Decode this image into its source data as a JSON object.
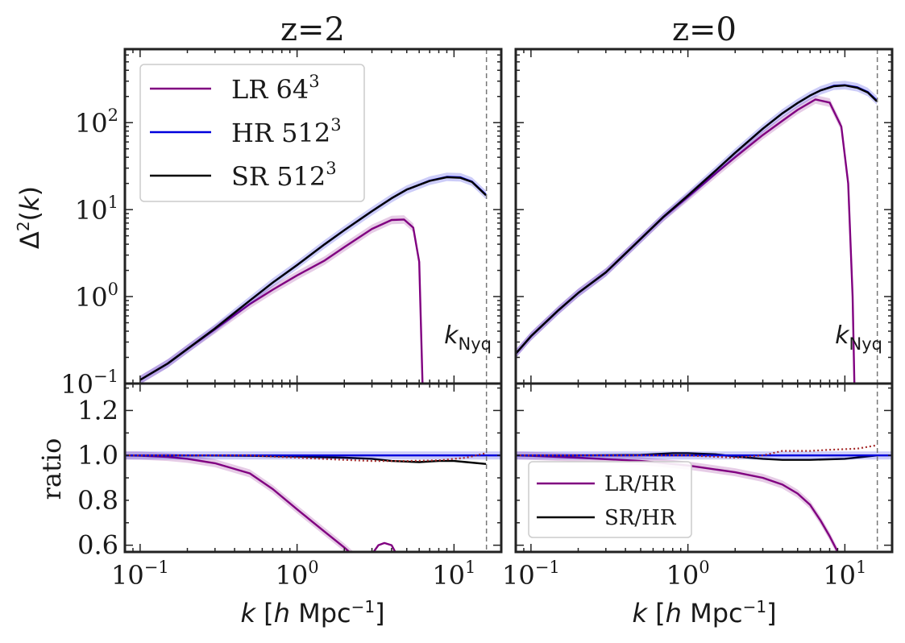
{
  "chart_data": [
    {
      "type": "line",
      "panel": "top-left",
      "title": "z=2",
      "ylabel": "Δ²(k)",
      "xscale": "log",
      "yscale": "log",
      "xlim": [
        0.08,
        20
      ],
      "ylim": [
        0.1,
        700
      ],
      "y_ticks": [
        {
          "v": 0.1,
          "base": "10",
          "exp": "−1"
        },
        {
          "v": 1,
          "base": "10",
          "exp": "0"
        },
        {
          "v": 10,
          "base": "10",
          "exp": "1"
        },
        {
          "v": 100,
          "base": "10",
          "exp": "2"
        }
      ],
      "nyquist": {
        "k": 16.1,
        "label_main": "k",
        "label_sub": "Nyq"
      },
      "legend": [
        {
          "label": "LR 64",
          "sup": "3",
          "color": "#800080"
        },
        {
          "label": "HR 512",
          "sup": "3",
          "color": "#0000dd"
        },
        {
          "label": "SR 512",
          "sup": "3",
          "color": "#000000"
        }
      ],
      "series": [
        {
          "name": "LR 64³",
          "color": "#800080",
          "band": true,
          "x": [
            0.1,
            0.15,
            0.2,
            0.3,
            0.5,
            0.7,
            1.0,
            1.5,
            2.0,
            3.0,
            4.0,
            4.8,
            5.5,
            6.0,
            6.3
          ],
          "y": [
            0.11,
            0.17,
            0.25,
            0.42,
            0.82,
            1.2,
            1.75,
            2.6,
            3.7,
            6.0,
            7.6,
            7.7,
            6.2,
            2.5,
            0.1
          ]
        },
        {
          "name": "HR 512³",
          "color": "#0000dd",
          "band": true,
          "x": [
            0.1,
            0.15,
            0.2,
            0.3,
            0.5,
            0.7,
            1.0,
            1.5,
            2.0,
            3.0,
            4.0,
            5.0,
            7.0,
            9.0,
            11.0,
            13.0,
            16.0
          ],
          "y": [
            0.11,
            0.17,
            0.25,
            0.43,
            0.9,
            1.45,
            2.3,
            4.0,
            5.8,
            9.6,
            13.5,
            17.0,
            21.5,
            23.8,
            23.5,
            21.0,
            14.8
          ]
        },
        {
          "name": "SR 512³",
          "color": "#000000",
          "band": false,
          "x": [
            0.1,
            0.15,
            0.2,
            0.3,
            0.5,
            0.7,
            1.0,
            1.5,
            2.0,
            3.0,
            4.0,
            5.0,
            7.0,
            9.0,
            11.0,
            13.0,
            16.0
          ],
          "y": [
            0.11,
            0.17,
            0.25,
            0.43,
            0.9,
            1.45,
            2.3,
            4.0,
            5.8,
            9.6,
            13.5,
            17.0,
            21.4,
            23.6,
            23.2,
            20.8,
            14.6
          ]
        }
      ]
    },
    {
      "type": "line",
      "panel": "top-right",
      "title": "z=0",
      "xscale": "log",
      "yscale": "log",
      "xlim": [
        0.08,
        20
      ],
      "ylim": [
        0.1,
        700
      ],
      "nyquist": {
        "k": 16.1,
        "label_main": "k",
        "label_sub": "Nyq"
      },
      "series": [
        {
          "name": "LR 64³",
          "color": "#800080",
          "band": true,
          "x": [
            0.08,
            0.1,
            0.15,
            0.2,
            0.3,
            0.5,
            0.7,
            1.0,
            1.5,
            2.0,
            3.0,
            4.0,
            5.0,
            6.5,
            8.0,
            9.5,
            10.5,
            11.2,
            11.5
          ],
          "y": [
            0.22,
            0.35,
            0.7,
            1.1,
            1.9,
            4.6,
            8.2,
            14.0,
            26.0,
            40.0,
            72.0,
            105,
            140,
            185,
            170,
            90,
            20,
            1.0,
            0.1
          ]
        },
        {
          "name": "HR 512³",
          "color": "#0000dd",
          "band": true,
          "x": [
            0.08,
            0.1,
            0.15,
            0.2,
            0.3,
            0.5,
            0.7,
            1.0,
            1.5,
            2.0,
            3.0,
            4.0,
            5.0,
            6.0,
            7.0,
            8.5,
            10.0,
            12.0,
            14.0,
            16.0
          ],
          "y": [
            0.22,
            0.35,
            0.7,
            1.1,
            1.9,
            4.6,
            8.3,
            14.5,
            28.0,
            45.0,
            85.0,
            128,
            168,
            205,
            235,
            265,
            270,
            255,
            225,
            180
          ]
        },
        {
          "name": "SR 512³",
          "color": "#000000",
          "band": false,
          "x": [
            0.08,
            0.1,
            0.15,
            0.2,
            0.3,
            0.5,
            0.7,
            1.0,
            1.5,
            2.0,
            3.0,
            4.0,
            5.0,
            6.0,
            7.0,
            8.5,
            10.0,
            12.0,
            14.0,
            16.0
          ],
          "y": [
            0.22,
            0.35,
            0.7,
            1.1,
            1.9,
            4.6,
            8.3,
            14.5,
            28.0,
            45.0,
            85.0,
            128,
            168,
            205,
            235,
            262,
            268,
            252,
            222,
            176
          ]
        }
      ]
    },
    {
      "type": "line",
      "panel": "bottom-left",
      "ylabel": "ratio",
      "xlabel": "k [h Mpc⁻¹]",
      "xscale": "log",
      "yscale": "linear",
      "xlim": [
        0.08,
        20
      ],
      "ylim": [
        0.57,
        1.32
      ],
      "y_ticks": [
        {
          "v": 0.6,
          "label": "0.6"
        },
        {
          "v": 0.8,
          "label": "0.8"
        },
        {
          "v": 1.0,
          "label": "1.0"
        },
        {
          "v": 1.2,
          "label": "1.2"
        }
      ],
      "x_ticks": [
        {
          "v": 0.1,
          "base": "10",
          "exp": "−1"
        },
        {
          "v": 1,
          "base": "10",
          "exp": "0"
        },
        {
          "v": 10,
          "base": "10",
          "exp": "1"
        }
      ],
      "series": [
        {
          "name": "LR/HR",
          "color": "#800080",
          "band": true,
          "x": [
            0.08,
            0.1,
            0.15,
            0.2,
            0.3,
            0.5,
            0.7,
            1.0,
            1.5,
            2.0,
            2.5
          ],
          "y": [
            1.0,
            0.999,
            0.993,
            0.985,
            0.965,
            0.92,
            0.85,
            0.76,
            0.66,
            0.59,
            0.53
          ]
        },
        {
          "name": "LR/HR (bump)",
          "color": "#800080",
          "band": false,
          "x": [
            3.0,
            3.3,
            3.6,
            4.0,
            4.3
          ],
          "y": [
            0.56,
            0.6,
            0.61,
            0.6,
            0.56
          ]
        },
        {
          "name": "SR/HR",
          "color": "#000000",
          "band": false,
          "x": [
            0.08,
            0.2,
            0.5,
            1.0,
            2.0,
            3.0,
            4.0,
            6.0,
            8.0,
            10.0,
            12.0,
            16.0
          ],
          "y": [
            1.0,
            1.0,
            0.998,
            0.995,
            0.99,
            0.985,
            0.975,
            0.97,
            0.975,
            0.975,
            0.97,
            0.962
          ]
        },
        {
          "name": "HR/HR",
          "color": "#0000dd",
          "band": true,
          "x": [
            0.08,
            20
          ],
          "y": [
            1.0,
            1.0
          ]
        },
        {
          "name": "reference (dotted)",
          "color": "#a52a2a",
          "dotted": true,
          "x": [
            0.08,
            0.5,
            1.0,
            2.0,
            3.0,
            5.0,
            8.0,
            12.0,
            16.0
          ],
          "y": [
            1.0,
            1.0,
            0.99,
            0.98,
            0.975,
            0.975,
            0.978,
            0.99,
            1.01
          ]
        }
      ]
    },
    {
      "type": "line",
      "panel": "bottom-right",
      "xlabel": "k [h Mpc⁻¹]",
      "xscale": "log",
      "yscale": "linear",
      "xlim": [
        0.08,
        20
      ],
      "ylim": [
        0.57,
        1.32
      ],
      "x_ticks": [
        {
          "v": 0.1,
          "base": "10",
          "exp": "−1"
        },
        {
          "v": 1,
          "base": "10",
          "exp": "0"
        },
        {
          "v": 10,
          "base": "10",
          "exp": "1"
        }
      ],
      "legend": [
        {
          "label": "LR/HR",
          "color": "#800080"
        },
        {
          "label": "SR/HR",
          "color": "#000000"
        }
      ],
      "series": [
        {
          "name": "LR/HR",
          "color": "#800080",
          "band": true,
          "x": [
            0.08,
            0.1,
            0.2,
            0.5,
            1.0,
            2.0,
            3.0,
            4.0,
            5.0,
            6.0,
            7.0,
            8.0,
            9.0
          ],
          "y": [
            1.0,
            0.998,
            0.99,
            0.975,
            0.955,
            0.925,
            0.9,
            0.87,
            0.83,
            0.78,
            0.71,
            0.64,
            0.57
          ]
        },
        {
          "name": "SR/HR",
          "color": "#000000",
          "band": false,
          "x": [
            0.08,
            0.2,
            0.5,
            0.8,
            1.0,
            1.5,
            2.0,
            3.0,
            4.0,
            6.0,
            10.0,
            16.0
          ],
          "y": [
            1.0,
            1.0,
            1.002,
            1.01,
            1.01,
            1.005,
            0.995,
            0.985,
            0.98,
            0.98,
            0.985,
            1.0
          ]
        },
        {
          "name": "HR/HR",
          "color": "#0000dd",
          "band": true,
          "x": [
            0.08,
            20
          ],
          "y": [
            1.0,
            1.0
          ]
        },
        {
          "name": "reference (dotted)",
          "color": "#a52a2a",
          "dotted": true,
          "x": [
            0.08,
            0.5,
            1.0,
            2.0,
            3.0,
            4.0,
            6.0,
            8.0,
            12.0,
            16.0
          ],
          "y": [
            1.0,
            1.0,
            1.0,
            0.99,
            1.0,
            1.02,
            1.02,
            1.025,
            1.03,
            1.045
          ]
        }
      ]
    }
  ]
}
